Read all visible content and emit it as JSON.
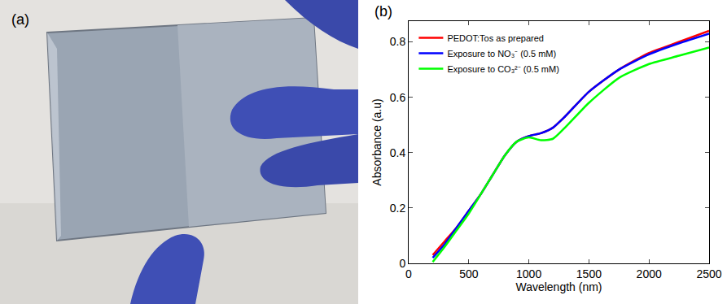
{
  "photo": {
    "label": "(a)"
  },
  "chart_data": {
    "type": "line",
    "annotations": [
      "(b)"
    ],
    "x_label": "Wavelength (nm)",
    "y_label": "Absorbance (a.u)",
    "x": [
      200,
      300,
      400,
      500,
      600,
      700,
      800,
      900,
      1000,
      1100,
      1200,
      1300,
      1500,
      1750,
      2000,
      2250,
      2500
    ],
    "series": [
      {
        "name": "PEDOT:Tos as prepared",
        "color": "#ff0000",
        "values": [
          0.03,
          0.08,
          0.13,
          0.19,
          0.25,
          0.32,
          0.39,
          0.44,
          0.46,
          0.47,
          0.49,
          0.53,
          0.62,
          0.7,
          0.76,
          0.8,
          0.84
        ]
      },
      {
        "name": "Exposure to NO₃⁻ (0.5 mM)",
        "color": "#0000ff",
        "values": [
          0.02,
          0.07,
          0.13,
          0.19,
          0.25,
          0.32,
          0.39,
          0.44,
          0.46,
          0.47,
          0.49,
          0.53,
          0.62,
          0.7,
          0.755,
          0.795,
          0.83
        ]
      },
      {
        "name": "Exposure to CO₃²⁻ (0.5 mM)",
        "color": "#00ff00",
        "values": [
          0.005,
          0.06,
          0.12,
          0.18,
          0.25,
          0.32,
          0.39,
          0.44,
          0.455,
          0.445,
          0.45,
          0.49,
          0.58,
          0.67,
          0.72,
          0.75,
          0.78
        ]
      }
    ],
    "xlim": [
      0,
      2500
    ],
    "xticks": [
      0,
      500,
      1000,
      1500,
      2000,
      2500
    ],
    "ylim": [
      0,
      0.875
    ],
    "yticks": [
      0,
      0.2,
      0.4,
      0.6,
      0.8
    ],
    "grid": false,
    "legend": "top-left"
  }
}
